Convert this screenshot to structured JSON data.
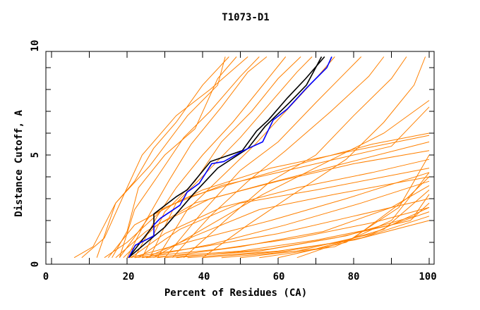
{
  "chart_data": {
    "type": "line",
    "title": "T1073-D1",
    "xlabel": "Percent of Residues (CA)",
    "ylabel": "Distance Cutoff, A",
    "xlim": [
      0,
      100
    ],
    "ylim": [
      0,
      10
    ],
    "x_ticks": [
      "0",
      "20",
      "40",
      "60",
      "80",
      "100"
    ],
    "y_ticks": [
      "0",
      "5",
      "10"
    ],
    "grid": false,
    "colors": {
      "others": "#ff8000",
      "highlight_black": "#000000",
      "highlight_blue": "#0000ff"
    },
    "series": [
      {
        "color": "#ff8000",
        "lines": [
          [
            [
              12,
              0.3
            ],
            [
              17,
              2.8
            ],
            [
              22,
              3.8
            ],
            [
              27,
              5.3
            ],
            [
              33,
              6.5
            ],
            [
              40,
              8.2
            ],
            [
              47,
              9.5
            ]
          ],
          [
            [
              16,
              0.3
            ],
            [
              20,
              1.5
            ],
            [
              23,
              3.5
            ],
            [
              30,
              5.0
            ],
            [
              38,
              6.2
            ],
            [
              44,
              8.5
            ],
            [
              49,
              9.5
            ]
          ],
          [
            [
              8,
              0.3
            ],
            [
              14,
              1.2
            ],
            [
              20,
              3.5
            ],
            [
              24,
              5.0
            ],
            [
              33,
              6.8
            ],
            [
              42,
              8.0
            ],
            [
              52,
              9.5
            ]
          ],
          [
            [
              18,
              0.3
            ],
            [
              22,
              2.5
            ],
            [
              28,
              4.0
            ],
            [
              35,
              5.8
            ],
            [
              42,
              7.0
            ],
            [
              50,
              8.6
            ],
            [
              55,
              9.5
            ]
          ],
          [
            [
              20,
              0.3
            ],
            [
              25,
              2.0
            ],
            [
              31,
              3.8
            ],
            [
              37,
              5.5
            ],
            [
              45,
              7.2
            ],
            [
              52,
              8.8
            ],
            [
              57,
              9.5
            ]
          ],
          [
            [
              22,
              0.3
            ],
            [
              28,
              2.2
            ],
            [
              33,
              3.5
            ],
            [
              40,
              5.0
            ],
            [
              48,
              6.5
            ],
            [
              55,
              8.0
            ],
            [
              62,
              9.5
            ]
          ],
          [
            [
              6,
              0.3
            ],
            [
              11,
              0.8
            ],
            [
              17,
              2.8
            ],
            [
              26,
              4.5
            ],
            [
              36,
              6.8
            ],
            [
              44,
              8.2
            ],
            [
              46,
              9.5
            ]
          ],
          [
            [
              24,
              0.3
            ],
            [
              30,
              2.4
            ],
            [
              38,
              3.8
            ],
            [
              45,
              5.6
            ],
            [
              53,
              7.0
            ],
            [
              60,
              8.5
            ],
            [
              66,
              9.5
            ]
          ],
          [
            [
              26,
              0.3
            ],
            [
              33,
              2.8
            ],
            [
              41,
              4.2
            ],
            [
              50,
              5.8
            ],
            [
              58,
              7.4
            ],
            [
              65,
              8.8
            ],
            [
              69,
              9.5
            ]
          ],
          [
            [
              28,
              0.3
            ],
            [
              36,
              2.5
            ],
            [
              45,
              4.0
            ],
            [
              54,
              5.5
            ],
            [
              62,
              7.0
            ],
            [
              70,
              8.5
            ],
            [
              75,
              9.5
            ]
          ],
          [
            [
              30,
              0.3
            ],
            [
              40,
              2.4
            ],
            [
              50,
              4.3
            ],
            [
              60,
              5.6
            ],
            [
              70,
              7.4
            ],
            [
              78,
              8.8
            ],
            [
              82,
              9.5
            ]
          ],
          [
            [
              32,
              0.3
            ],
            [
              42,
              2.2
            ],
            [
              52,
              3.8
            ],
            [
              62,
              5.2
            ],
            [
              74,
              7.0
            ],
            [
              84,
              8.6
            ],
            [
              88,
              9.5
            ]
          ],
          [
            [
              35,
              0.3
            ],
            [
              46,
              2.0
            ],
            [
              58,
              3.8
            ],
            [
              70,
              5.0
            ],
            [
              80,
              6.8
            ],
            [
              90,
              8.5
            ],
            [
              94,
              9.5
            ]
          ],
          [
            [
              40,
              0.3
            ],
            [
              52,
              1.8
            ],
            [
              64,
              3.2
            ],
            [
              78,
              4.8
            ],
            [
              88,
              6.5
            ],
            [
              96,
              8.2
            ],
            [
              99,
              9.5
            ]
          ],
          [
            [
              15,
              0.3
            ],
            [
              22,
              1.8
            ],
            [
              35,
              3.0
            ],
            [
              50,
              3.8
            ],
            [
              70,
              4.8
            ],
            [
              85,
              5.5
            ],
            [
              100,
              6.0
            ]
          ],
          [
            [
              17,
              0.3
            ],
            [
              25,
              1.5
            ],
            [
              38,
              2.8
            ],
            [
              55,
              3.6
            ],
            [
              75,
              4.5
            ],
            [
              100,
              5.6
            ]
          ],
          [
            [
              19,
              0.3
            ],
            [
              28,
              1.8
            ],
            [
              42,
              3.0
            ],
            [
              60,
              3.8
            ],
            [
              80,
              4.6
            ],
            [
              100,
              5.2
            ]
          ],
          [
            [
              21,
              0.3
            ],
            [
              30,
              1.4
            ],
            [
              45,
              2.6
            ],
            [
              65,
              3.5
            ],
            [
              85,
              4.2
            ],
            [
              100,
              4.8
            ]
          ],
          [
            [
              23,
              0.3
            ],
            [
              34,
              1.6
            ],
            [
              50,
              2.8
            ],
            [
              70,
              3.4
            ],
            [
              100,
              4.4
            ]
          ],
          [
            [
              25,
              0.3
            ],
            [
              38,
              1.3
            ],
            [
              55,
              2.5
            ],
            [
              75,
              3.2
            ],
            [
              100,
              4.0
            ]
          ],
          [
            [
              14,
              0.3
            ],
            [
              20,
              1.0
            ],
            [
              30,
              2.6
            ],
            [
              45,
              3.6
            ],
            [
              65,
              4.4
            ],
            [
              90,
              5.4
            ],
            [
              100,
              7.2
            ]
          ],
          [
            [
              27,
              0.3
            ],
            [
              40,
              1.6
            ],
            [
              56,
              3.2
            ],
            [
              72,
              4.6
            ],
            [
              88,
              6.0
            ],
            [
              100,
              7.5
            ]
          ],
          [
            [
              18,
              0.3
            ],
            [
              26,
              2.2
            ],
            [
              40,
              3.4
            ],
            [
              58,
              4.4
            ],
            [
              80,
              5.2
            ],
            [
              100,
              5.9
            ]
          ],
          [
            [
              20,
              0.3
            ],
            [
              40,
              0.8
            ],
            [
              60,
              1.4
            ],
            [
              80,
              2.2
            ],
            [
              100,
              3.0
            ]
          ],
          [
            [
              22,
              0.3
            ],
            [
              45,
              0.7
            ],
            [
              65,
              1.2
            ],
            [
              85,
              1.9
            ],
            [
              100,
              2.6
            ]
          ],
          [
            [
              25,
              0.3
            ],
            [
              50,
              0.6
            ],
            [
              70,
              1.1
            ],
            [
              90,
              1.8
            ],
            [
              100,
              2.4
            ]
          ],
          [
            [
              28,
              0.3
            ],
            [
              50,
              0.8
            ],
            [
              72,
              1.5
            ],
            [
              90,
              2.6
            ],
            [
              100,
              3.6
            ]
          ],
          [
            [
              30,
              0.3
            ],
            [
              55,
              0.6
            ],
            [
              75,
              1.2
            ],
            [
              95,
              2.0
            ],
            [
              100,
              2.8
            ]
          ],
          [
            [
              33,
              0.3
            ],
            [
              58,
              0.7
            ],
            [
              78,
              1.3
            ],
            [
              96,
              2.2
            ],
            [
              100,
              3.2
            ]
          ],
          [
            [
              36,
              0.3
            ],
            [
              60,
              0.6
            ],
            [
              80,
              1.1
            ],
            [
              100,
              2.0
            ]
          ],
          [
            [
              40,
              0.3
            ],
            [
              62,
              0.6
            ],
            [
              82,
              1.2
            ],
            [
              100,
              2.2
            ]
          ],
          [
            [
              45,
              0.3
            ],
            [
              65,
              0.6
            ],
            [
              85,
              1.4
            ],
            [
              100,
              2.6
            ]
          ],
          [
            [
              50,
              0.3
            ],
            [
              70,
              0.7
            ],
            [
              88,
              1.6
            ],
            [
              100,
              3.4
            ]
          ],
          [
            [
              55,
              0.3
            ],
            [
              75,
              0.8
            ],
            [
              90,
              2.0
            ],
            [
              100,
              4.2
            ]
          ],
          [
            [
              60,
              0.3
            ],
            [
              78,
              1.0
            ],
            [
              92,
              2.6
            ],
            [
              100,
              5.0
            ]
          ],
          [
            [
              65,
              0.3
            ],
            [
              80,
              1.2
            ],
            [
              94,
              3.0
            ],
            [
              100,
              4.0
            ]
          ],
          [
            [
              24,
              0.3
            ],
            [
              42,
              0.9
            ],
            [
              62,
              1.8
            ],
            [
              82,
              2.8
            ],
            [
              100,
              3.8
            ]
          ],
          [
            [
              21,
              0.3
            ],
            [
              38,
              1.1
            ],
            [
              58,
              2.0
            ],
            [
              78,
              3.0
            ],
            [
              100,
              4.2
            ]
          ]
        ]
      },
      {
        "color": "#000000",
        "lines": [
          [
            [
              20.4,
              0.3
            ],
            [
              27.1,
              1.8
            ],
            [
              27.1,
              2.3
            ],
            [
              33.1,
              3.1
            ],
            [
              35.9,
              3.4
            ],
            [
              42.1,
              4.7
            ],
            [
              50.5,
              5.2
            ],
            [
              54.3,
              6.1
            ],
            [
              57.4,
              6.6
            ],
            [
              62.4,
              7.6
            ],
            [
              67.3,
              8.5
            ],
            [
              72.3,
              9.5
            ]
          ],
          [
            [
              20.4,
              0.3
            ],
            [
              30,
              1.7
            ],
            [
              37.5,
              3.2
            ],
            [
              44,
              4.4
            ],
            [
              52,
              5.3
            ],
            [
              56.5,
              6.3
            ],
            [
              63,
              7.4
            ],
            [
              67.5,
              8.2
            ],
            [
              71.5,
              9.5
            ]
          ]
        ]
      },
      {
        "color": "#0000ff",
        "lines": [
          [
            [
              20.4,
              0.3
            ],
            [
              22.2,
              0.87
            ],
            [
              27.1,
              1.3
            ],
            [
              27.1,
              1.8
            ],
            [
              28.8,
              2.1
            ],
            [
              34,
              2.7
            ],
            [
              35.9,
              3.3
            ],
            [
              39.1,
              3.7
            ],
            [
              42.4,
              4.6
            ],
            [
              45.6,
              4.7
            ],
            [
              50.8,
              5.2
            ],
            [
              55.9,
              5.6
            ],
            [
              58.7,
              6.6
            ],
            [
              62.4,
              7.1
            ],
            [
              67.7,
              8.1
            ],
            [
              72.9,
              9.0
            ],
            [
              74.2,
              9.5
            ]
          ]
        ]
      }
    ]
  }
}
